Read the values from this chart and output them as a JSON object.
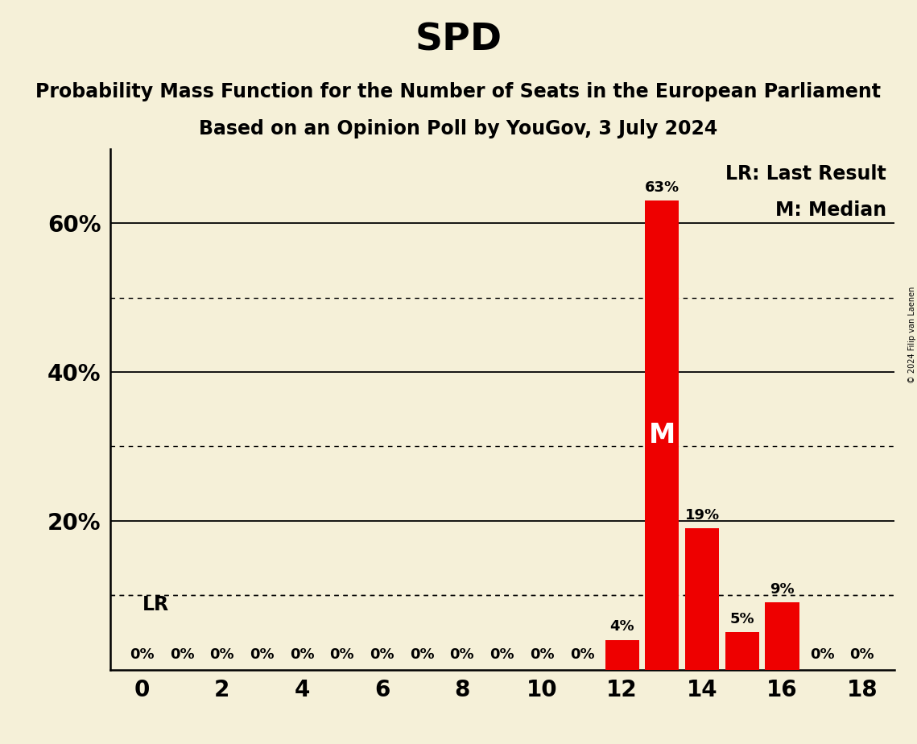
{
  "title": "SPD",
  "subtitle1": "Probability Mass Function for the Number of Seats in the European Parliament",
  "subtitle2": "Based on an Opinion Poll by YouGov, 3 July 2024",
  "copyright": "© 2024 Filip van Laenen",
  "background_color": "#f5f0d8",
  "bar_color": "#ee0000",
  "seats": [
    0,
    1,
    2,
    3,
    4,
    5,
    6,
    7,
    8,
    9,
    10,
    11,
    12,
    13,
    14,
    15,
    16,
    17,
    18
  ],
  "probabilities": [
    0,
    0,
    0,
    0,
    0,
    0,
    0,
    0,
    0,
    0,
    0,
    0,
    4,
    63,
    19,
    5,
    9,
    0,
    0
  ],
  "labels": [
    "0%",
    "0%",
    "0%",
    "0%",
    "0%",
    "0%",
    "0%",
    "0%",
    "0%",
    "0%",
    "0%",
    "0%",
    "4%",
    "63%",
    "19%",
    "5%",
    "9%",
    "0%",
    "0%"
  ],
  "median_seat": 13,
  "ylim_max": 70,
  "solid_gridlines": [
    20,
    40,
    60
  ],
  "dotted_gridlines": [
    10,
    30,
    50
  ],
  "lr_line": 10,
  "ytick_values": [
    20,
    40,
    60
  ],
  "ytick_labels": [
    "20%",
    "40%",
    "60%"
  ],
  "xtick_values": [
    0,
    2,
    4,
    6,
    8,
    10,
    12,
    14,
    16,
    18
  ],
  "legend_lr": "LR: Last Result",
  "legend_m": "M: Median",
  "title_fontsize": 34,
  "subtitle_fontsize": 17,
  "label_fontsize": 13,
  "axis_tick_fontsize": 20,
  "legend_fontsize": 17,
  "median_label_fontsize": 24,
  "lr_label_fontsize": 17
}
